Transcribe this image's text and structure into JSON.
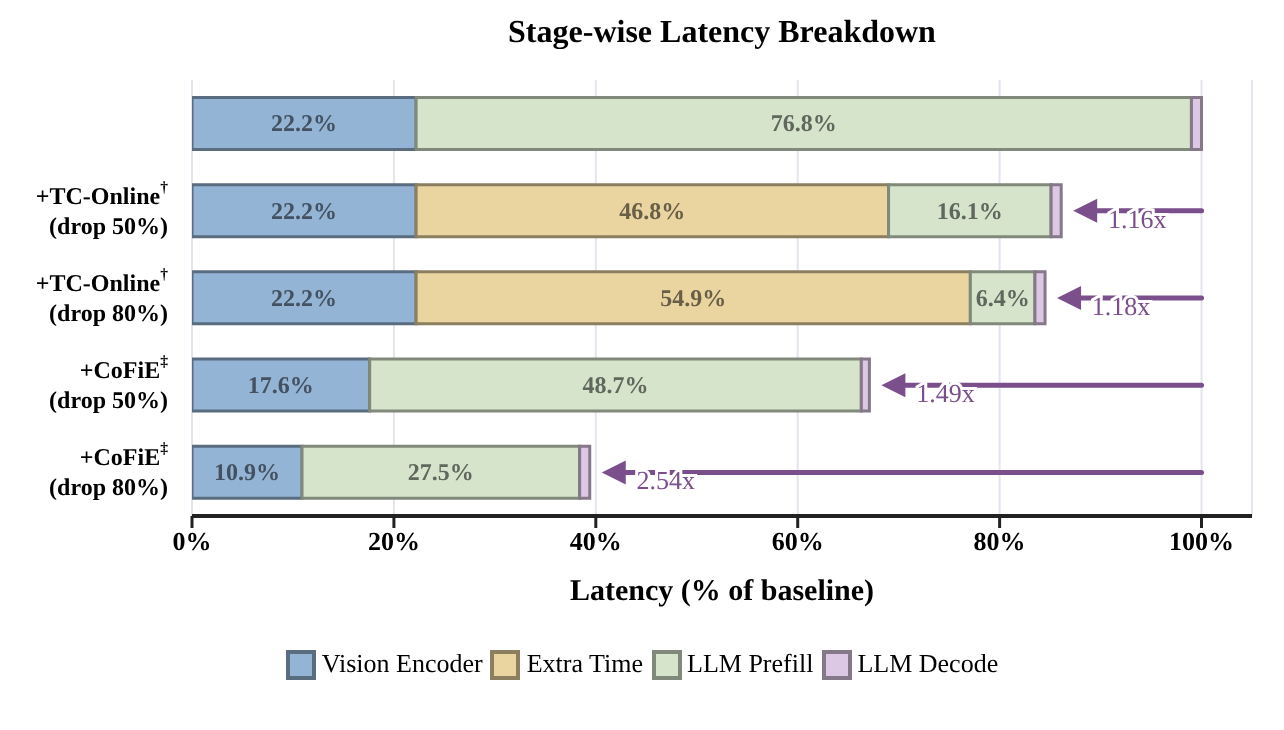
{
  "chart_data": {
    "type": "bar",
    "orientation": "horizontal",
    "stacked": true,
    "title": "Stage-wise Latency Breakdown",
    "xlabel": "Latency (% of baseline)",
    "categories": [
      null,
      "+TC-Online$^{†}$\n(drop 50%)",
      "+TC-Online$^{†}$\n(drop 80%)",
      "+CoFiE$^{‡}$\n(drop 50%)",
      "+CoFiE$^{‡}$\n(drop 80%)"
    ],
    "series": [
      {
        "name": "Vision Encoder",
        "color": "#94b4d6",
        "values": [
          22.2,
          22.2,
          22.2,
          17.6,
          10.9
        ],
        "value_labels": [
          "22.2%",
          "22.2%",
          "22.2%",
          "17.6%",
          "10.9%"
        ]
      },
      {
        "name": "Extra Time",
        "color": "#ead4a0",
        "values": [
          null,
          46.8,
          54.9,
          null,
          null
        ],
        "value_labels": [
          null,
          "46.8%",
          "54.9%",
          null,
          null
        ]
      },
      {
        "name": "LLM Prefill",
        "color": "#d6e4cc",
        "values": [
          76.8,
          16.1,
          6.4,
          48.7,
          27.5
        ],
        "value_labels": [
          "76.8%",
          "16.1%",
          "6.4%",
          "48.7%",
          "27.5%"
        ]
      },
      {
        "name": "LLM Decode",
        "color": "#dcc8e4",
        "values": [
          1.0,
          1.0,
          1.0,
          0.8,
          1.0
        ]
      }
    ],
    "xlim": [
      0,
      105
    ],
    "xticks": [
      {
        "value": 0,
        "label": "0%"
      },
      {
        "value": 20,
        "label": "20%"
      },
      {
        "value": 40,
        "label": "40%"
      },
      {
        "value": 60,
        "label": "60%"
      },
      {
        "value": 80,
        "label": "80%"
      },
      {
        "value": 100,
        "label": "100%"
      }
    ],
    "grid": "x",
    "legend": "bottom",
    "annotations": [
      {
        "text": "1.16x",
        "x": 86.1,
        "y": "+TC-Online$^{†}$\n(drop 50%)"
      },
      {
        "text": "1.18x",
        "x": 84.5,
        "y": "+TC-Online$^{†}$\n(drop 80%)"
      },
      {
        "text": "1.49x",
        "x": 67.1,
        "y": "+CoFiE$^{‡}$\n(drop 50%)"
      },
      {
        "text": "2.54x",
        "x": 39.4,
        "y": "+CoFiE$^{‡}$\n(drop 80%)"
      }
    ]
  }
}
